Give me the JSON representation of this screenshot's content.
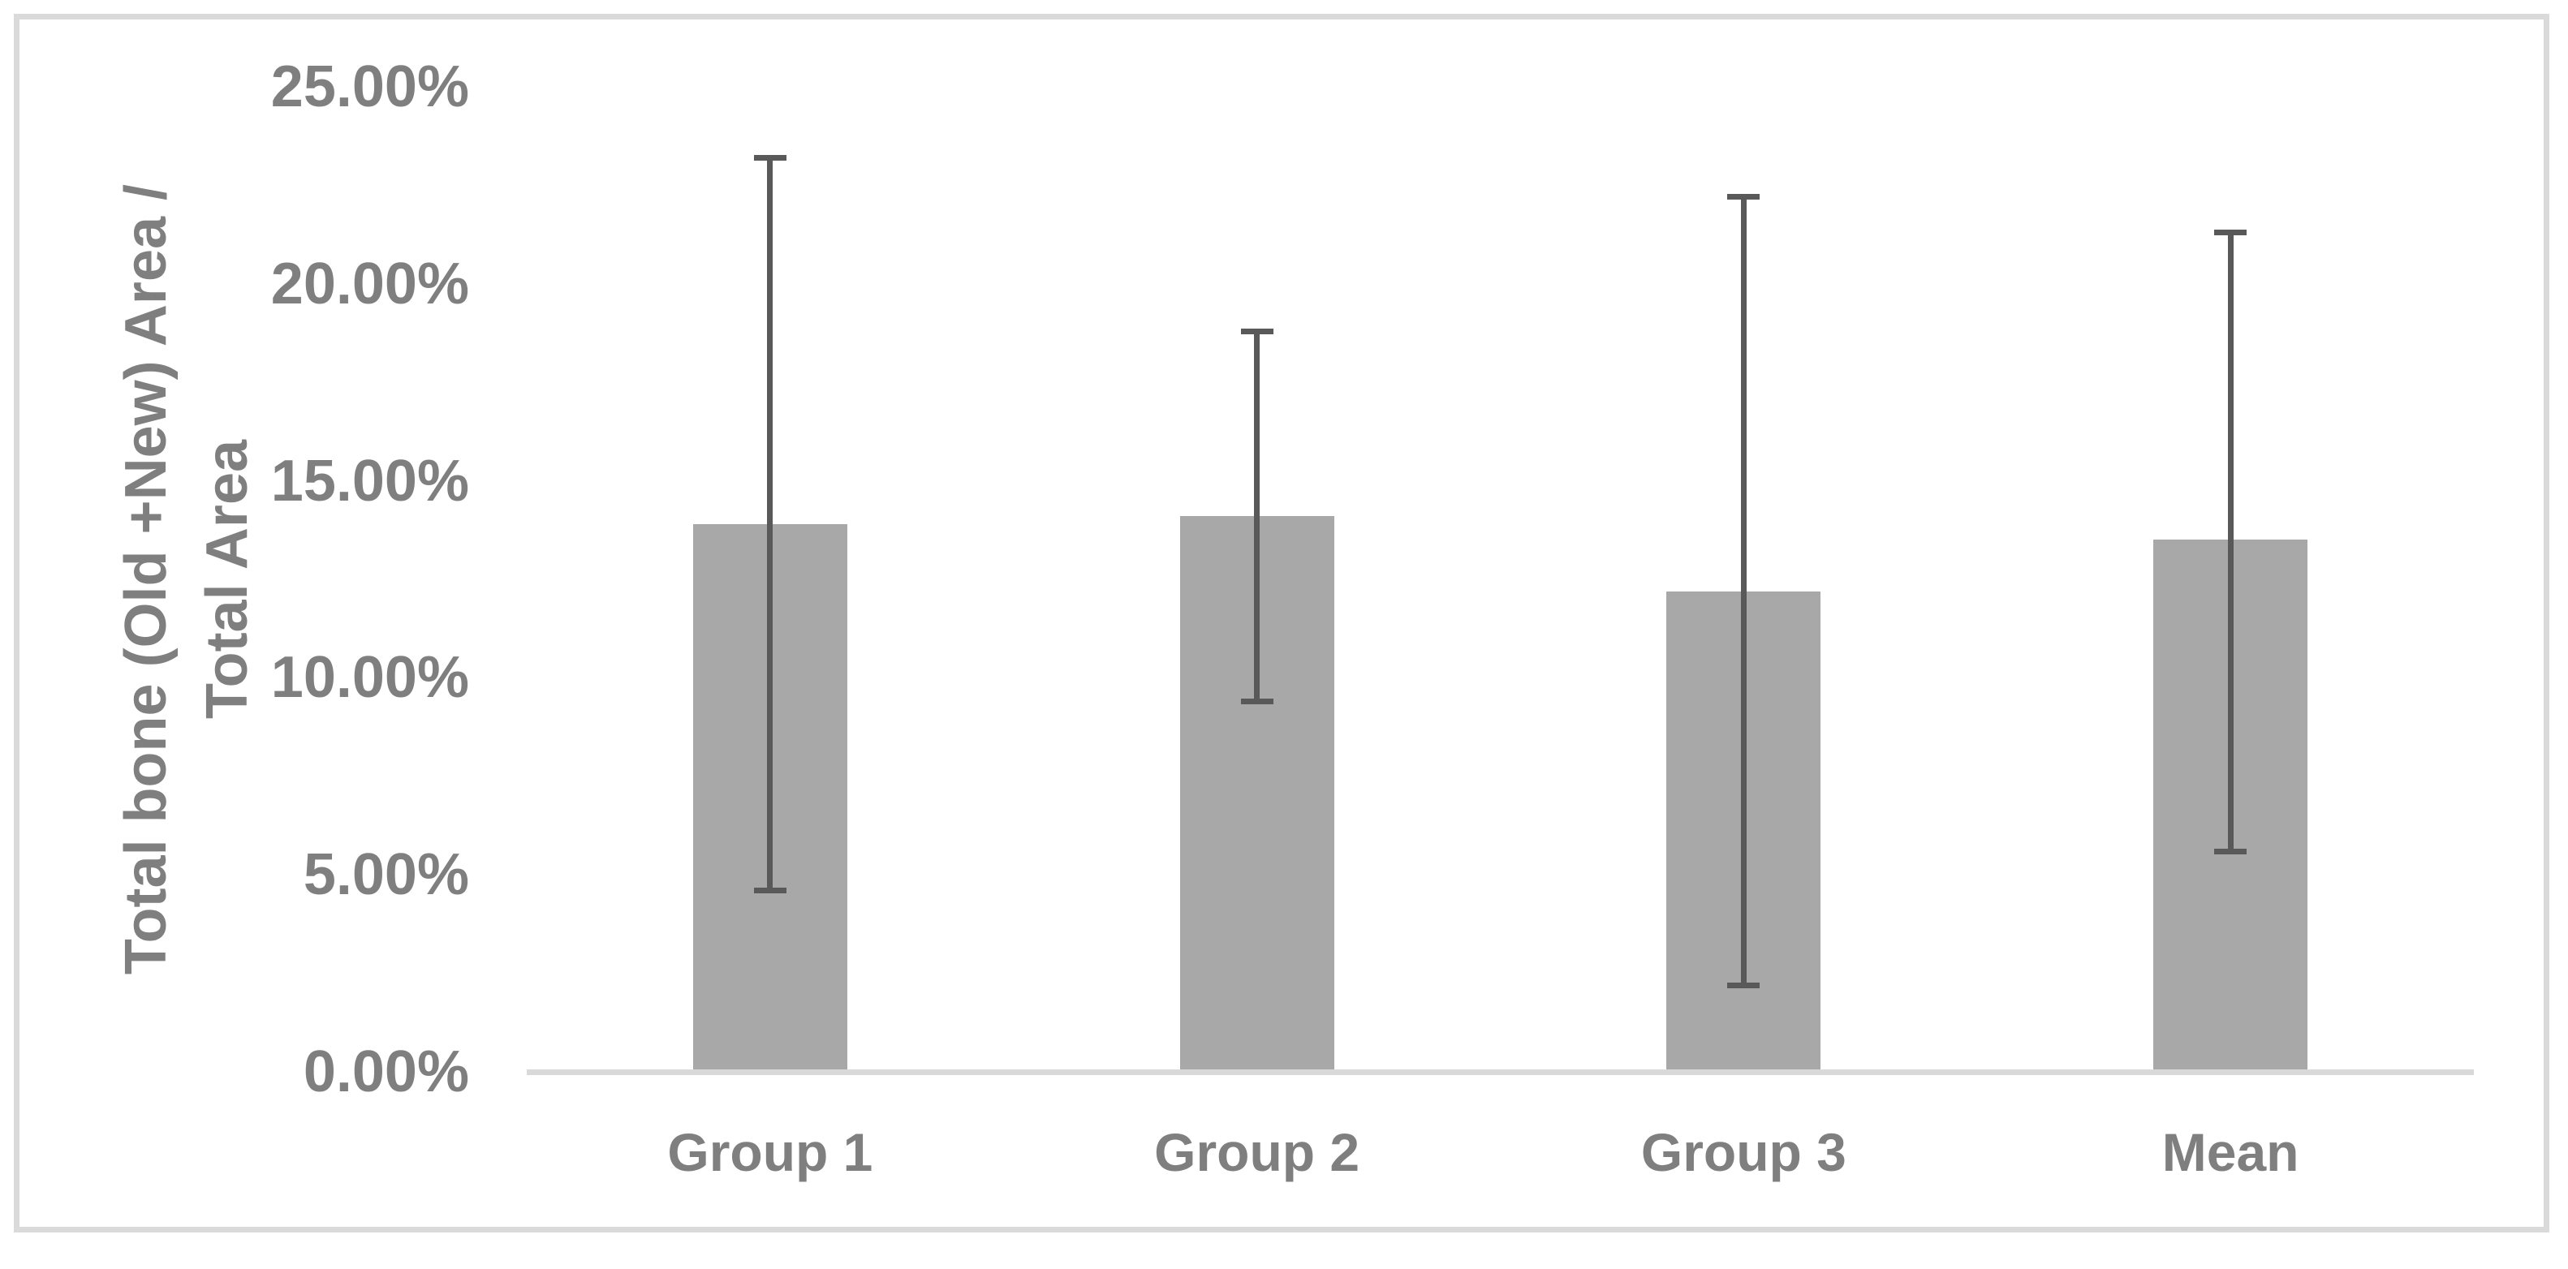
{
  "chart_data": {
    "type": "bar",
    "title": "",
    "categories": [
      "Group 1",
      "Group 2",
      "Group 3",
      "Mean"
    ],
    "series": [
      {
        "name": "Total bone area / total area",
        "values_pct": [
          13.9,
          14.1,
          12.2,
          13.5
        ]
      }
    ],
    "error_bars": {
      "upper_end_pct": [
        23.2,
        18.8,
        22.2,
        21.3
      ],
      "lower_end_pct": [
        4.6,
        9.4,
        2.2,
        5.6
      ]
    },
    "ylabel_line1": "Total bone (Old +New) Area /",
    "ylabel_line2": "Total Area",
    "xlabel": "",
    "yticks": [
      "25.00%",
      "20.00%",
      "15.00%",
      "10.00%",
      "5.00%",
      "0.00%"
    ],
    "ylim": [
      0,
      25
    ],
    "grid": "off",
    "legend": "none",
    "colors": {
      "bar_fill": "#A8A8A8",
      "error_bar": "#595959",
      "axis_line": "#D9D9D9",
      "chart_border": "#DADADA",
      "label_text": "#7F7F7F",
      "background": "#FFFFFF"
    }
  }
}
